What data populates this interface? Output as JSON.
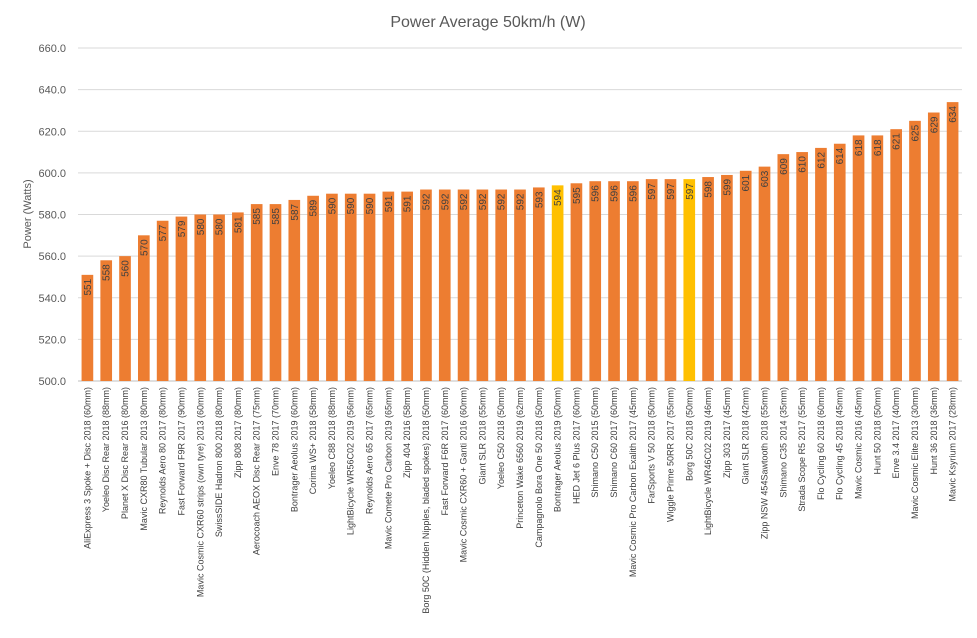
{
  "chart_data": {
    "type": "bar",
    "title": "Power Average 50km/h (W)",
    "xlabel": "",
    "ylabel": "Power  (Watts)",
    "ylim": [
      500,
      660
    ],
    "yticks": [
      "500.0",
      "520.0",
      "540.0",
      "560.0",
      "580.0",
      "600.0",
      "620.0",
      "640.0",
      "660.0"
    ],
    "grid": true,
    "legend": "none",
    "colors": {
      "default": "#ED7D31",
      "highlight": "#FFC000",
      "grid": "#D9D9D9",
      "axis": "#BFBFBF"
    },
    "categories": [
      "AliExpress 3 Spoke + Disc 2018 (60mm)",
      "Yoeleo Disc Rear 2018 (88mm)",
      "Planet X Disc Rear 2016 (80mm)",
      "Mavic CXR80 Tubular 2013 (80mm)",
      "Reynolds Aero 80 2017 (80mm)",
      "Fast Forward F9R 2017 (90mm)",
      "Mavic Cosmic CXR60 strips (own tyre) 2013 (60mm)",
      "SwissSIDE Hadron 800 2018 (80mm)",
      "Zipp 808 2017 (80mm)",
      "Aerocoach AEOX Disc Rear 2017 (75mm)",
      "Enve 78 2017 (70mm)",
      "Bontrager Aeolus 2019 (60mm)",
      "Corima WS+ 2018 (58mm)",
      "Yoeleo C88 2018 (88mm)",
      "LightBicycle WR56C02 2019 (56mm)",
      "Reynolds Aero 65 2017 (65mm)",
      "Mavic Comete Pro Carbon 2019 (65mm)",
      "Zipp 404 2016 (58mm)",
      "Borg 50C (Hidden Nipples, bladed spokes) 2018 (50mm)",
      "Fast Forward F6R 2017 (60mm)",
      "Mavic Cosmic CXR60 + Ganti 2016 (60mm)",
      "Giant SLR 2018 (55mm)",
      "Yoeleo C50 2018 (50mm)",
      "Princeton Wake 6560 2019 (62mm)",
      "Campagnolo Bora One 50 2018 (50mm)",
      "Bontrager Aeolus 2019 (50mm)",
      "HED Jet 6 Plus 2017 (60mm)",
      "Shimano C50 2015 (50mm)",
      "Shimano C60 2017 (60mm)",
      "Mavic Cosmic Pro Carbon Exalith 2017 (45mm)",
      "FarSports V 50 2018 (50mm)",
      "Wiggle Prime 50RR 2017 (55mm)",
      "Borg 50C 2018 (50mm)",
      "LightBicycle WR46C02 2019 (46mm)",
      "Zipp 303 2017 (45mm)",
      "Giant SLR 2018 (42mm)",
      "Zipp NSW 454Sawtooth 2018 (55mm)",
      "Shimano C35 2014 (35mm)",
      "Strada Scope R5 2017 (55mm)",
      "Flo Cycling 60 2018 (60mm)",
      "Flo Cycling 45 2018 (45mm)",
      "Mavic Cosmic 2016 (45mm)",
      "Hunt 50 2018 (50mm)",
      "Enve 3.4 2017 (40mm)",
      "Mavic Cosmic Elite 2013 (30mm)",
      "Hunt 36 2018 (36mm)",
      "Mavic Ksyrium 2017 (28mm)"
    ],
    "values": [
      551,
      558,
      560,
      570,
      577,
      579,
      580,
      580,
      581,
      585,
      585,
      587,
      589,
      590,
      590,
      590,
      591,
      591,
      592,
      592,
      592,
      592,
      592,
      592,
      593,
      594,
      595,
      596,
      596,
      596,
      597,
      597,
      597,
      598,
      599,
      601,
      603,
      609,
      610,
      612,
      614,
      618,
      618,
      621,
      625,
      629,
      634
    ],
    "data_labels": [
      "551",
      "558",
      "560",
      "570",
      "577",
      "579",
      "580",
      "580",
      "581",
      "585",
      "585",
      "587",
      "589",
      "590",
      "590",
      "590",
      "591",
      "591",
      "592",
      "592",
      "592",
      "592",
      "592",
      "592",
      "593",
      "594",
      "595",
      "596",
      "596",
      "596",
      "597",
      "597",
      "597",
      "598",
      "599",
      "601",
      "603",
      "609",
      "610",
      "612",
      "614",
      "618",
      "618",
      "621",
      "625",
      "629",
      "634"
    ],
    "highlighted": [
      25,
      32
    ]
  }
}
